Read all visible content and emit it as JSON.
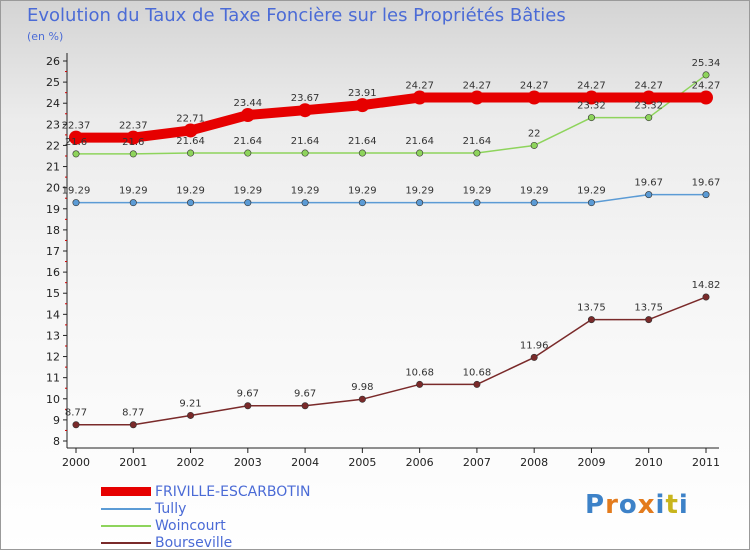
{
  "header": {
    "title": "Evolution du Taux de Taxe Foncière sur les Propriétés Bâties",
    "unit": "(en %)"
  },
  "logo": {
    "text": "Proxiti",
    "colors": [
      "#3d82c8",
      "#e37b1d",
      "#3d82c8",
      "#e37b1d",
      "#3d82c8",
      "#c8b51d",
      "#3d82c8"
    ]
  },
  "chart_data": {
    "type": "line",
    "title": "Evolution du Taux de Taxe Foncière sur les Propriétés Bâties",
    "ylabel": "(en %)",
    "xlabel": "",
    "categories": [
      "2000",
      "2001",
      "2002",
      "2003",
      "2004",
      "2005",
      "2006",
      "2007",
      "2008",
      "2009",
      "2010",
      "2011"
    ],
    "ylim": [
      8,
      26
    ],
    "yticks": [
      "8",
      "9",
      "10",
      "11",
      "12",
      "13",
      "14",
      "15",
      "16",
      "17",
      "18",
      "19",
      "20",
      "21",
      "22",
      "23",
      "24",
      "25",
      "26"
    ],
    "grid": false,
    "legend_position": "bottom-left",
    "series": [
      {
        "name": "FRIVILLE-ESCARBOTIN",
        "color": "#e60000",
        "values": [
          22.37,
          22.37,
          22.71,
          23.44,
          23.67,
          23.91,
          24.27,
          24.27,
          24.27,
          24.27,
          24.27,
          24.27
        ],
        "labels": [
          "22.37",
          "22.37",
          "22.71",
          "23.44",
          "23.67",
          "23.91",
          "24.27",
          "24.27",
          "24.27",
          "24.27",
          "24.27",
          "24.27"
        ]
      },
      {
        "name": "Tully",
        "color": "#5b9bd5",
        "values": [
          19.29,
          19.29,
          19.29,
          19.29,
          19.29,
          19.29,
          19.29,
          19.29,
          19.29,
          19.29,
          19.67,
          19.67
        ],
        "labels": [
          "19.29",
          "19.29",
          "19.29",
          "19.29",
          "19.29",
          "19.29",
          "19.29",
          "19.29",
          "19.29",
          "19.29",
          "19.67",
          "19.67"
        ]
      },
      {
        "name": "Woincourt",
        "color": "#8ed45c",
        "values": [
          21.6,
          21.6,
          21.64,
          21.64,
          21.64,
          21.64,
          21.64,
          21.64,
          22,
          23.32,
          23.32,
          25.34
        ],
        "labels": [
          "21.6",
          "21.6",
          "21.64",
          "21.64",
          "21.64",
          "21.64",
          "21.64",
          "21.64",
          "22",
          "23.32",
          "23.32",
          "25.34"
        ]
      },
      {
        "name": "Bourseville",
        "color": "#7a2a2a",
        "values": [
          8.77,
          8.77,
          9.21,
          9.67,
          9.67,
          9.98,
          10.68,
          10.68,
          11.96,
          13.75,
          13.75,
          14.82
        ],
        "labels": [
          "8.77",
          "8.77",
          "9.21",
          "9.67",
          "9.67",
          "9.98",
          "10.68",
          "10.68",
          "11.96",
          "13.75",
          "13.75",
          "14.82"
        ]
      }
    ]
  }
}
